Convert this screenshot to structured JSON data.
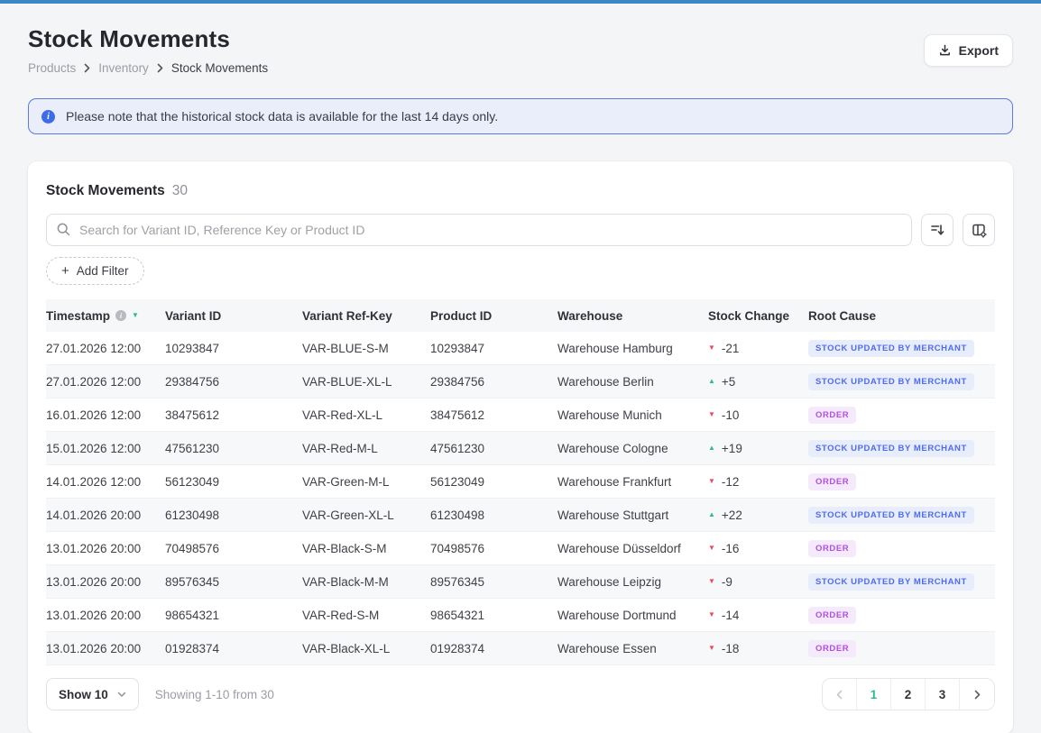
{
  "page": {
    "title": "Stock Movements",
    "breadcrumb": [
      "Products",
      "Inventory",
      "Stock Movements"
    ],
    "export_label": "Export"
  },
  "banner": {
    "text": "Please note that the historical stock data is available for the last 14 days only."
  },
  "card": {
    "title": "Stock Movements",
    "count": "30",
    "search_placeholder": "Search for Variant ID, Reference Key or Product ID",
    "add_filter_label": "Add Filter",
    "plus_glyph": "+"
  },
  "table": {
    "columns": [
      "Timestamp",
      "Variant ID",
      "Variant Ref-Key",
      "Product ID",
      "Warehouse",
      "Stock Change",
      "Root Cause"
    ],
    "sorted_column": "Timestamp",
    "rows": [
      {
        "timestamp": "27.01.2026 12:00",
        "variant_id": "10293847",
        "ref_key": "VAR-BLUE-S-M",
        "product_id": "10293847",
        "warehouse": "Warehouse Hamburg",
        "change": "-21",
        "direction": "down",
        "root_cause": "STOCK UPDATED BY MERCHANT",
        "cause_type": "merchant"
      },
      {
        "timestamp": "27.01.2026 12:00",
        "variant_id": "29384756",
        "ref_key": "VAR-BLUE-XL-L",
        "product_id": "29384756",
        "warehouse": "Warehouse Berlin",
        "change": "+5",
        "direction": "up",
        "root_cause": "STOCK UPDATED BY MERCHANT",
        "cause_type": "merchant"
      },
      {
        "timestamp": "16.01.2026 12:00",
        "variant_id": "38475612",
        "ref_key": "VAR-Red-XL-L",
        "product_id": "38475612",
        "warehouse": "Warehouse Munich",
        "change": "-10",
        "direction": "down",
        "root_cause": "ORDER",
        "cause_type": "order"
      },
      {
        "timestamp": "15.01.2026 12:00",
        "variant_id": "47561230",
        "ref_key": "VAR-Red-M-L",
        "product_id": "47561230",
        "warehouse": "Warehouse Cologne",
        "change": "+19",
        "direction": "up",
        "root_cause": "STOCK UPDATED BY MERCHANT",
        "cause_type": "merchant"
      },
      {
        "timestamp": "14.01.2026 12:00",
        "variant_id": "56123049",
        "ref_key": "VAR-Green-M-L",
        "product_id": "56123049",
        "warehouse": "Warehouse Frankfurt",
        "change": "-12",
        "direction": "down",
        "root_cause": "ORDER",
        "cause_type": "order"
      },
      {
        "timestamp": "14.01.2026 20:00",
        "variant_id": "61230498",
        "ref_key": "VAR-Green-XL-L",
        "product_id": "61230498",
        "warehouse": "Warehouse Stuttgart",
        "change": "+22",
        "direction": "up",
        "root_cause": "STOCK UPDATED BY MERCHANT",
        "cause_type": "merchant"
      },
      {
        "timestamp": "13.01.2026 20:00",
        "variant_id": "70498576",
        "ref_key": "VAR-Black-S-M",
        "product_id": "70498576",
        "warehouse": "Warehouse Düsseldorf",
        "change": "-16",
        "direction": "down",
        "root_cause": "ORDER",
        "cause_type": "order"
      },
      {
        "timestamp": "13.01.2026 20:00",
        "variant_id": "89576345",
        "ref_key": "VAR-Black-M-M",
        "product_id": "89576345",
        "warehouse": "Warehouse Leipzig",
        "change": "-9",
        "direction": "down",
        "root_cause": "STOCK UPDATED BY MERCHANT",
        "cause_type": "merchant"
      },
      {
        "timestamp": "13.01.2026 20:00",
        "variant_id": "98654321",
        "ref_key": "VAR-Red-S-M",
        "product_id": "98654321",
        "warehouse": "Warehouse Dortmund",
        "change": "-14",
        "direction": "down",
        "root_cause": "ORDER",
        "cause_type": "order"
      },
      {
        "timestamp": "13.01.2026 20:00",
        "variant_id": "01928374",
        "ref_key": "VAR-Black-XL-L",
        "product_id": "01928374",
        "warehouse": "Warehouse Essen",
        "change": "-18",
        "direction": "down",
        "root_cause": "ORDER",
        "cause_type": "order"
      }
    ]
  },
  "footer": {
    "show_label": "Show 10",
    "summary": "Showing 1-10 from 30",
    "pages": [
      "1",
      "2",
      "3"
    ],
    "active_page": "1"
  },
  "icons": {
    "triangle_down": "▼",
    "triangle_up": "▲",
    "info_glyph": "i"
  },
  "colors": {
    "topbar": "#3b85c8",
    "page_bg": "#f4f5f7",
    "accent_teal": "#2bbd82",
    "negative_red": "#f2455c",
    "banner_bg": "#eaeefb",
    "banner_border": "#5d79e2",
    "banner_icon": "#3d6cea",
    "badge_blue": "#4f6bef",
    "badge_blue_bg": "#e8edfc",
    "badge_purple": "#b24fe0",
    "badge_purple_bg": "#f5eafc"
  }
}
